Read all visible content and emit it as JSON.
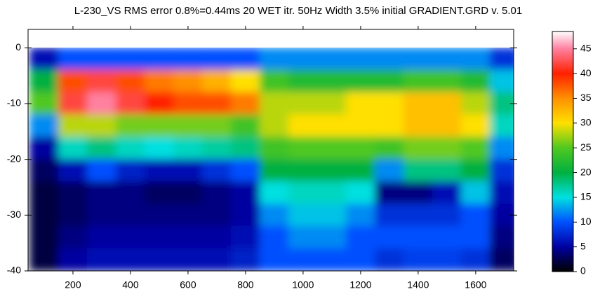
{
  "chart_data": {
    "type": "heatmap",
    "title": "L-230_VS RMS error 0.8%=0.44ms 20 WET itr. 50Hz Width 3.5% initial GRADIENT.GRD v. 5.01",
    "x": [
      100,
      200,
      300,
      400,
      500,
      600,
      700,
      800,
      900,
      1000,
      1100,
      1200,
      1300,
      1400,
      1500,
      1600,
      1700
    ],
    "y": [
      -2,
      -6,
      -10,
      -14,
      -18,
      -22,
      -26,
      -30,
      -34,
      -38
    ],
    "z": [
      [
        6,
        10,
        10,
        10,
        10,
        10,
        10,
        10,
        12,
        12,
        12,
        12,
        12,
        12,
        12,
        12,
        8
      ],
      [
        20,
        38,
        42,
        38,
        36,
        35,
        33,
        30,
        24,
        22,
        22,
        22,
        22,
        24,
        24,
        22,
        14
      ],
      [
        25,
        42,
        45,
        42,
        40,
        38,
        38,
        36,
        28,
        28,
        28,
        30,
        30,
        32,
        32,
        28,
        18
      ],
      [
        12,
        28,
        28,
        26,
        26,
        26,
        26,
        24,
        28,
        30,
        30,
        30,
        30,
        32,
        32,
        30,
        16
      ],
      [
        5,
        16,
        18,
        16,
        15,
        16,
        17,
        18,
        24,
        25,
        25,
        25,
        24,
        26,
        26,
        25,
        12
      ],
      [
        3,
        6,
        10,
        7,
        6,
        6,
        8,
        10,
        20,
        20,
        20,
        20,
        12,
        18,
        18,
        20,
        8
      ],
      [
        2,
        3,
        4,
        4,
        3,
        3,
        4,
        5,
        15,
        16,
        16,
        15,
        4,
        4,
        6,
        14,
        6
      ],
      [
        2,
        3,
        4,
        4,
        4,
        4,
        4,
        5,
        12,
        14,
        14,
        12,
        8,
        8,
        8,
        10,
        5
      ],
      [
        2,
        4,
        5,
        5,
        5,
        5,
        5,
        6,
        10,
        12,
        12,
        10,
        10,
        10,
        10,
        10,
        4
      ],
      [
        2,
        5,
        6,
        6,
        6,
        6,
        6,
        7,
        10,
        10,
        10,
        10,
        8,
        9,
        9,
        8,
        3
      ]
    ],
    "xlim": [
      44,
      1732
    ],
    "ylim": [
      -40,
      3.3
    ],
    "xticks": [
      200,
      400,
      600,
      800,
      1000,
      1200,
      1400,
      1600
    ],
    "yticks": [
      0,
      -10,
      -20,
      -30,
      -40
    ],
    "zlim": [
      0,
      48.5
    ],
    "zticks": [
      0,
      5,
      10,
      15,
      20,
      25,
      30,
      35,
      40,
      45
    ],
    "colormap": [
      {
        "value": 0,
        "color": "#000000"
      },
      {
        "value": 5,
        "color": "#0000a0"
      },
      {
        "value": 10,
        "color": "#0050ff"
      },
      {
        "value": 15,
        "color": "#00e0e0"
      },
      {
        "value": 20,
        "color": "#00b040"
      },
      {
        "value": 25,
        "color": "#50c820"
      },
      {
        "value": 30,
        "color": "#ffe000"
      },
      {
        "value": 35,
        "color": "#ff9000"
      },
      {
        "value": 40,
        "color": "#ff2000"
      },
      {
        "value": 45,
        "color": "#ff80a0"
      },
      {
        "value": 48.5,
        "color": "#ffffff"
      }
    ]
  }
}
